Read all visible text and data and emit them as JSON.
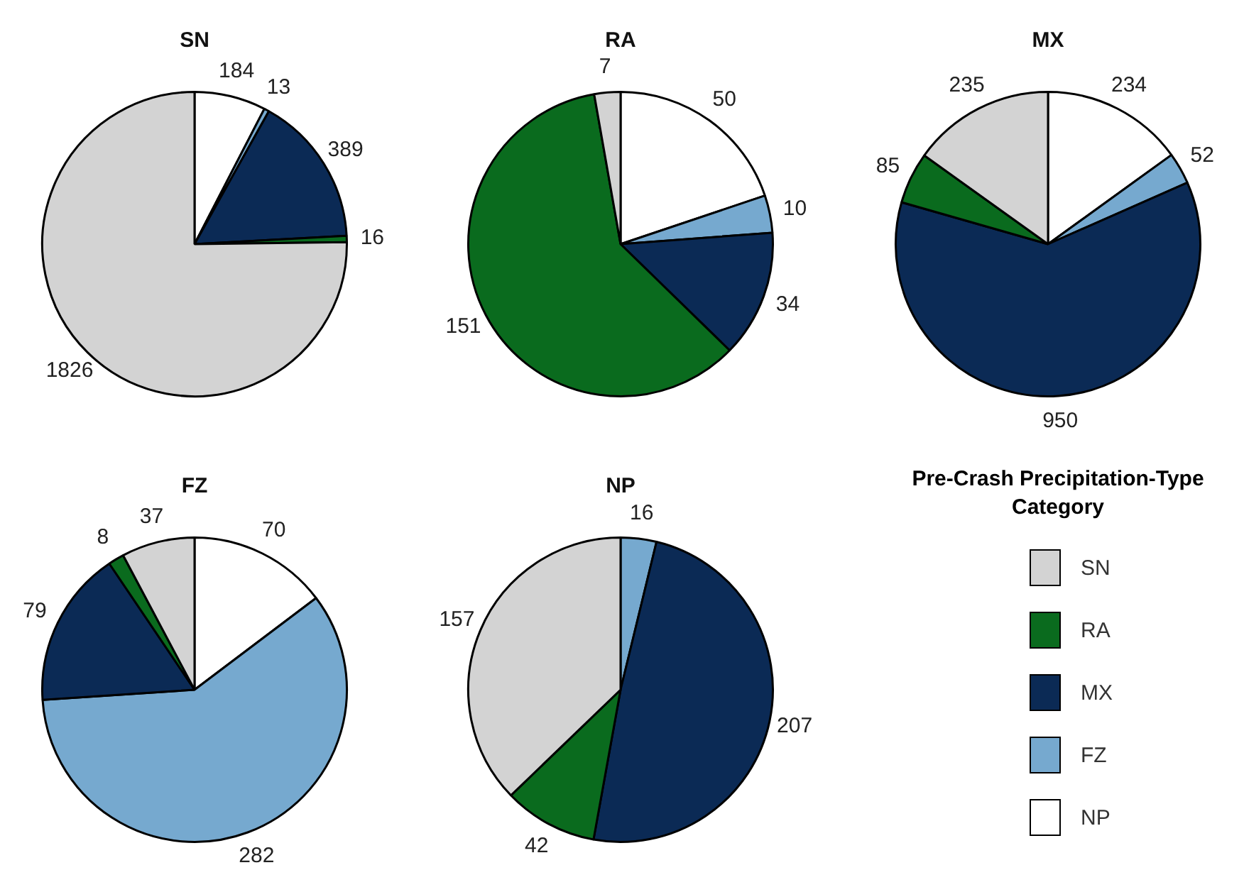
{
  "chart_data": [
    {
      "type": "pie",
      "title": "SN",
      "categories": [
        null,
        null,
        null,
        null,
        null
      ],
      "values": [
        184,
        13,
        389,
        16,
        1826
      ],
      "colors": [
        "#ffffff",
        "#76a9cf",
        "#0b2a55",
        "#0a6b1e",
        "#d3d3d3"
      ],
      "data_labels": true,
      "legend": false
    },
    {
      "type": "pie",
      "title": "RA",
      "categories": [
        null,
        null,
        null,
        null,
        null
      ],
      "values": [
        50,
        10,
        34,
        151,
        7
      ],
      "colors": [
        "#ffffff",
        "#76a9cf",
        "#0b2a55",
        "#0a6b1e",
        "#d3d3d3"
      ],
      "data_labels": true,
      "legend": false
    },
    {
      "type": "pie",
      "title": "MX",
      "categories": [
        null,
        null,
        null,
        null,
        null
      ],
      "values": [
        234,
        52,
        950,
        85,
        235
      ],
      "colors": [
        "#ffffff",
        "#76a9cf",
        "#0b2a55",
        "#0a6b1e",
        "#d3d3d3"
      ],
      "data_labels": true,
      "legend": false
    },
    {
      "type": "pie",
      "title": "FZ",
      "categories": [
        null,
        null,
        null,
        null,
        null
      ],
      "values": [
        70,
        282,
        79,
        8,
        37
      ],
      "colors": [
        "#ffffff",
        "#76a9cf",
        "#0b2a55",
        "#0a6b1e",
        "#d3d3d3"
      ],
      "data_labels": true,
      "legend": false
    },
    {
      "type": "pie",
      "title": "NP",
      "categories": [
        "NP",
        "FZ",
        "MX",
        "RA",
        "SN"
      ],
      "values": [
        null,
        16,
        207,
        42,
        157
      ],
      "colors": [
        "#ffffff",
        "#76a9cf",
        "#0b2a55",
        "#0a6b1e",
        "#d3d3d3"
      ],
      "data_labels": true,
      "legend": "right",
      "legend_title": "Pre-Crash Precipitation-Type Category"
    }
  ]
}
